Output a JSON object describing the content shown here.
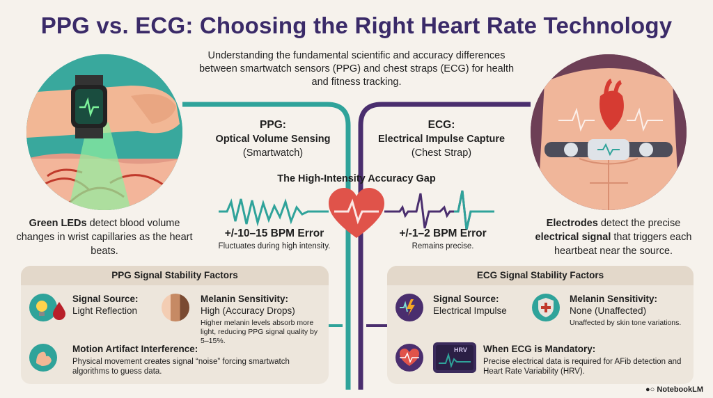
{
  "title": "PPG vs. ECG: Choosing the Right Heart Rate Technology",
  "subtitle": "Understanding the fundamental scientific and accuracy differences between smartwatch sensors (PPG) and chest straps (ECG) for health and fitness tracking.",
  "ppg": {
    "heading": "PPG:",
    "method": "Optical Volume Sensing",
    "device": "(Smartwatch)",
    "description_bold": "Green LEDs",
    "description_rest": " detect blood volume changes in wrist capillaries as the heart beats.",
    "error": "+/-10–15 BPM Error",
    "error_note": "Fluctuates during high intensity."
  },
  "ecg": {
    "heading": "ECG:",
    "method": "Electrical Impulse Capture",
    "device": "(Chest Strap)",
    "description_bold1": "Electrodes",
    "description_mid": " detect the precise ",
    "description_bold2": "electrical signal",
    "description_rest": " that triggers each heartbeat near the source.",
    "error": "+/-1–2 BPM Error",
    "error_note": "Remains precise."
  },
  "gap_title": "The High-Intensity Accuracy Gap",
  "ppg_panel": {
    "title": "PPG Signal Stability Factors",
    "signal_source_label": "Signal Source:",
    "signal_source_value": "Light Reflection",
    "melanin_label": "Melanin Sensitivity:",
    "melanin_value": "High (Accuracy Drops)",
    "melanin_note": "Higher melanin levels absorb more light, reducing PPG signal quality by 5–15%.",
    "motion_label": "Motion Artifact Interference:",
    "motion_note": "Physical movement creates signal “noise” forcing smartwatch algorithms to guess data."
  },
  "ecg_panel": {
    "title": "ECG Signal Stability Factors",
    "signal_source_label": "Signal Source:",
    "signal_source_value": "Electrical Impulse",
    "melanin_label": "Melanin Sensitivity:",
    "melanin_value": "None (Unaffected)",
    "melanin_note": "Unaffected by skin tone variations.",
    "mandatory_label": "When ECG is Mandatory:",
    "mandatory_note": "Precise electrical data is required for AFib detection and Heart Rate Variability (HRV).",
    "hrv_badge": "HRV"
  },
  "logo": "NotebookLM",
  "colors": {
    "ppg": "#2fa39a",
    "ecg": "#4a2e6e",
    "title": "#3a2a68",
    "heart": "#e0534a"
  },
  "icons": [
    "smartwatch-wrist-illustration",
    "chest-strap-illustration",
    "heart-icon",
    "lightbulb-icon",
    "blood-drop-icon",
    "skin-tone-icon",
    "arm-muscle-icon",
    "lightning-icon",
    "shield-cross-icon",
    "heart-ecg-icon",
    "hrv-monitor-icon",
    "notebook-logo-icon"
  ]
}
